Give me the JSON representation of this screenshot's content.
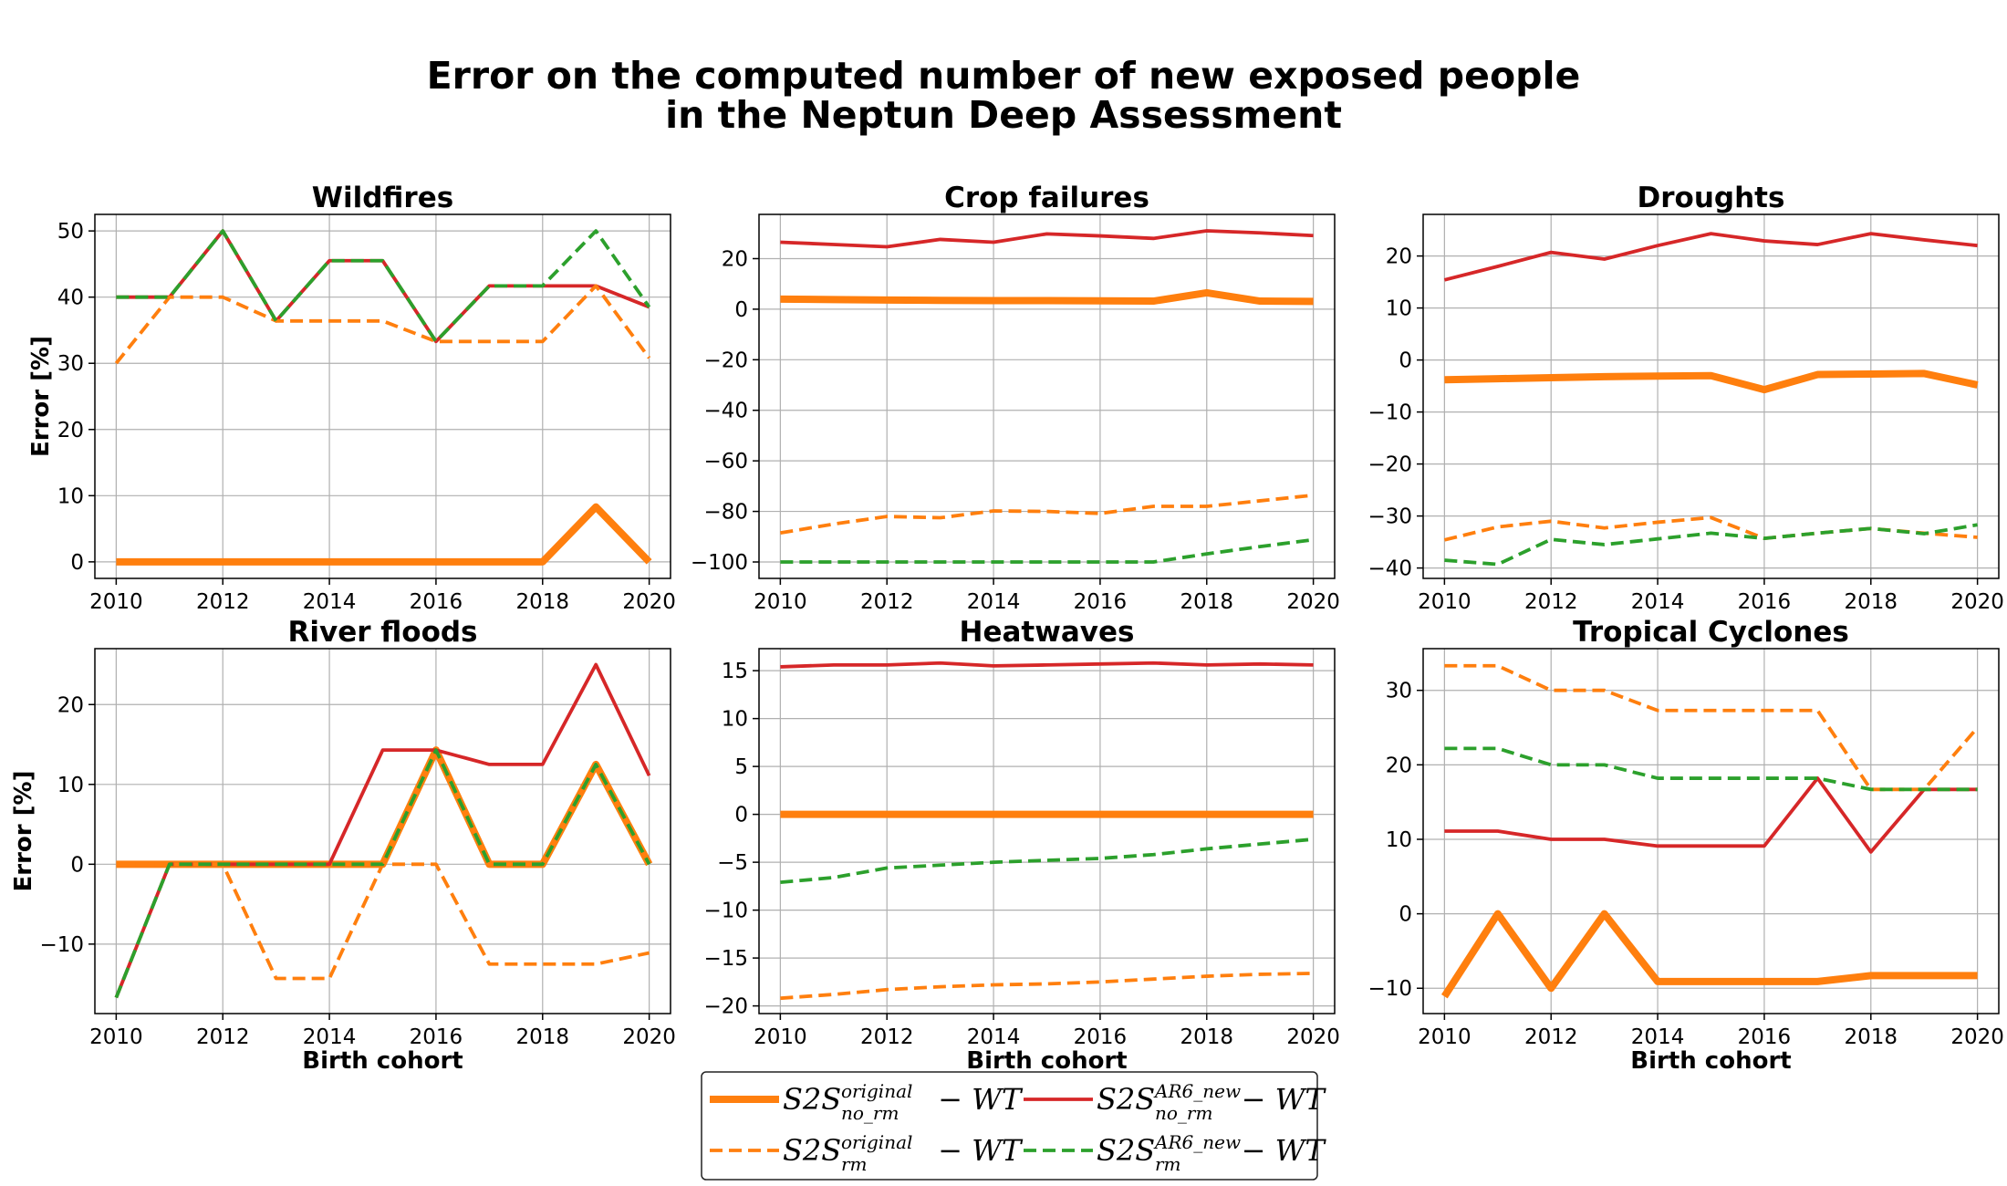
{
  "figure": {
    "title_line1": "Error on the computed number of new exposed people",
    "title_line2": "in the Neptun Deep Assessment"
  },
  "colors": {
    "orange": "#ff7f0e",
    "red": "#d62728",
    "green": "#2ca02c",
    "grid": "#b0b0b0"
  },
  "legend": {
    "entries": [
      {
        "key": "orig_norm",
        "base": "S2S",
        "sup": "original",
        "sub": "no_rm",
        "tail": " − WT"
      },
      {
        "key": "ar6_norm",
        "base": "S2S",
        "sup": "AR6_new",
        "sub": "no_rm",
        "tail": " − WT"
      },
      {
        "key": "orig_rm",
        "base": "S2S",
        "sup": "original",
        "sub": "rm",
        "tail": " − WT"
      },
      {
        "key": "ar6_rm",
        "base": "S2S",
        "sup": "AR6_new",
        "sub": "rm",
        "tail": " − WT"
      }
    ]
  },
  "chart_data": [
    {
      "type": "line",
      "title": "Wildfires",
      "ylabel": "Error [%]",
      "xlabel": "",
      "x": [
        2010,
        2011,
        2012,
        2013,
        2014,
        2015,
        2016,
        2017,
        2018,
        2019,
        2020
      ],
      "xticks": [
        2010,
        2012,
        2014,
        2016,
        2018,
        2020
      ],
      "yticks": [
        0,
        10,
        20,
        30,
        40,
        50
      ],
      "ylim": [
        -2.5,
        52.5
      ],
      "grid": true,
      "series": [
        {
          "key": "orig_norm",
          "values": [
            0,
            0,
            0,
            0,
            0,
            0,
            0,
            0,
            0,
            8.3,
            0
          ]
        },
        {
          "key": "ar6_norm",
          "values": [
            40,
            40,
            50,
            36.4,
            45.5,
            45.5,
            33.3,
            41.7,
            41.7,
            41.7,
            38.5
          ]
        },
        {
          "key": "orig_rm",
          "values": [
            30,
            40,
            40,
            36.4,
            36.4,
            36.4,
            33.3,
            33.3,
            33.3,
            41.7,
            30.8
          ]
        },
        {
          "key": "ar6_rm",
          "values": [
            40,
            40,
            50,
            36.4,
            45.5,
            45.5,
            33.3,
            41.7,
            41.7,
            50,
            38.5
          ]
        }
      ]
    },
    {
      "type": "line",
      "title": "Crop failures",
      "ylabel": "",
      "xlabel": "",
      "x": [
        2010,
        2011,
        2012,
        2013,
        2014,
        2015,
        2016,
        2017,
        2018,
        2019,
        2020
      ],
      "xticks": [
        2010,
        2012,
        2014,
        2016,
        2018,
        2020
      ],
      "yticks": [
        -100,
        -80,
        -60,
        -40,
        -20,
        0,
        20
      ],
      "ylim": [
        -106.5,
        37.5
      ],
      "grid": true,
      "series": [
        {
          "key": "orig_norm",
          "values": [
            4,
            3.8,
            3.6,
            3.5,
            3.4,
            3.4,
            3.3,
            3.2,
            6.5,
            3.2,
            3.1
          ]
        },
        {
          "key": "ar6_norm",
          "values": [
            26.5,
            25.6,
            24.7,
            27.6,
            26.5,
            29.8,
            29,
            28,
            31,
            30.2,
            29.1
          ]
        },
        {
          "key": "orig_rm",
          "values": [
            -88.5,
            -85,
            -82,
            -82.5,
            -79.8,
            -80,
            -80.8,
            -78,
            -78,
            -75.8,
            -73.6
          ]
        },
        {
          "key": "ar6_rm",
          "values": [
            -100,
            -100,
            -100,
            -100,
            -100,
            -100,
            -100,
            -100,
            -96.8,
            -93.9,
            -91.2
          ]
        }
      ]
    },
    {
      "type": "line",
      "title": "Droughts",
      "ylabel": "",
      "xlabel": "",
      "x": [
        2010,
        2011,
        2012,
        2013,
        2014,
        2015,
        2016,
        2017,
        2018,
        2019,
        2020
      ],
      "xticks": [
        2010,
        2012,
        2014,
        2016,
        2018,
        2020
      ],
      "yticks": [
        -40,
        -30,
        -20,
        -10,
        0,
        10,
        20
      ],
      "ylim": [
        -42,
        28
      ],
      "grid": true,
      "series": [
        {
          "key": "orig_norm",
          "values": [
            -3.8,
            -3.6,
            -3.4,
            -3.2,
            -3.1,
            -3,
            -5.7,
            -2.8,
            -2.7,
            -2.6,
            -4.8
          ]
        },
        {
          "key": "ar6_norm",
          "values": [
            15.4,
            18,
            20.7,
            19.4,
            22,
            24.3,
            22.9,
            22.2,
            24.3,
            23.1,
            22
          ]
        },
        {
          "key": "orig_rm",
          "values": [
            -34.6,
            -32.1,
            -31,
            -32.3,
            -31.2,
            -30.3,
            -34.3,
            -33.3,
            -32.4,
            -33.3,
            -34.1
          ]
        },
        {
          "key": "ar6_rm",
          "values": [
            -38.5,
            -39.3,
            -34.5,
            -35.5,
            -34.4,
            -33.3,
            -34.3,
            -33.3,
            -32.4,
            -33.4,
            -31.7
          ]
        }
      ]
    },
    {
      "type": "line",
      "title": "River floods",
      "ylabel": "Error [%]",
      "xlabel": "Birth cohort",
      "x": [
        2010,
        2011,
        2012,
        2013,
        2014,
        2015,
        2016,
        2017,
        2018,
        2019,
        2020
      ],
      "xticks": [
        2010,
        2012,
        2014,
        2016,
        2018,
        2020
      ],
      "yticks": [
        -10,
        0,
        10,
        20
      ],
      "ylim": [
        -18.7,
        27
      ],
      "grid": true,
      "series": [
        {
          "key": "orig_norm",
          "values": [
            0,
            0,
            0,
            0,
            0,
            0,
            14.3,
            0,
            0,
            12.5,
            0
          ]
        },
        {
          "key": "ar6_norm",
          "values": [
            -16.7,
            0,
            0,
            0,
            0,
            14.3,
            14.3,
            12.5,
            12.5,
            25,
            11.1
          ]
        },
        {
          "key": "orig_rm",
          "values": [
            0,
            0,
            0,
            -14.3,
            -14.3,
            0,
            0,
            -12.5,
            -12.5,
            -12.5,
            -11.1
          ]
        },
        {
          "key": "ar6_rm",
          "values": [
            -16.7,
            0,
            0,
            0,
            0,
            0,
            14.3,
            0,
            0,
            12.5,
            0
          ]
        }
      ]
    },
    {
      "type": "line",
      "title": "Heatwaves",
      "ylabel": "",
      "xlabel": "Birth cohort",
      "x": [
        2010,
        2011,
        2012,
        2013,
        2014,
        2015,
        2016,
        2017,
        2018,
        2019,
        2020
      ],
      "xticks": [
        2010,
        2012,
        2014,
        2016,
        2018,
        2020
      ],
      "yticks": [
        -20,
        -15,
        -10,
        -5,
        0,
        5,
        10,
        15
      ],
      "ylim": [
        -20.8,
        17.3
      ],
      "grid": true,
      "series": [
        {
          "key": "orig_norm",
          "values": [
            0,
            0,
            0,
            0,
            0,
            0,
            0,
            0,
            0,
            0,
            0
          ]
        },
        {
          "key": "ar6_norm",
          "values": [
            15.4,
            15.6,
            15.6,
            15.8,
            15.5,
            15.6,
            15.7,
            15.8,
            15.6,
            15.7,
            15.6
          ]
        },
        {
          "key": "orig_rm",
          "values": [
            -19.2,
            -18.8,
            -18.3,
            -18,
            -17.8,
            -17.7,
            -17.5,
            -17.2,
            -16.9,
            -16.7,
            -16.6
          ]
        },
        {
          "key": "ar6_rm",
          "values": [
            -7.1,
            -6.6,
            -5.6,
            -5.3,
            -5,
            -4.8,
            -4.6,
            -4.2,
            -3.6,
            -3.1,
            -2.6
          ]
        }
      ]
    },
    {
      "type": "line",
      "title": "Tropical Cyclones",
      "ylabel": "",
      "xlabel": "Birth cohort",
      "x": [
        2010,
        2011,
        2012,
        2013,
        2014,
        2015,
        2016,
        2017,
        2018,
        2019,
        2020
      ],
      "xticks": [
        2010,
        2012,
        2014,
        2016,
        2018,
        2020
      ],
      "yticks": [
        -10,
        0,
        10,
        20,
        30
      ],
      "ylim": [
        -13.4,
        35.6
      ],
      "grid": true,
      "series": [
        {
          "key": "orig_norm",
          "values": [
            -11.1,
            0,
            -10,
            0,
            -9.1,
            -9.1,
            -9.1,
            -9.1,
            -8.3,
            -8.3,
            -8.3
          ]
        },
        {
          "key": "ar6_norm",
          "values": [
            11.1,
            11.1,
            10,
            10,
            9.1,
            9.1,
            9.1,
            18.2,
            8.3,
            16.7,
            16.7
          ]
        },
        {
          "key": "orig_rm",
          "values": [
            33.3,
            33.3,
            30,
            30,
            27.3,
            27.3,
            27.3,
            27.3,
            16.7,
            16.7,
            25
          ]
        },
        {
          "key": "ar6_rm",
          "values": [
            22.2,
            22.2,
            20,
            20,
            18.2,
            18.2,
            18.2,
            18.2,
            16.7,
            16.7,
            16.7
          ]
        }
      ]
    }
  ]
}
